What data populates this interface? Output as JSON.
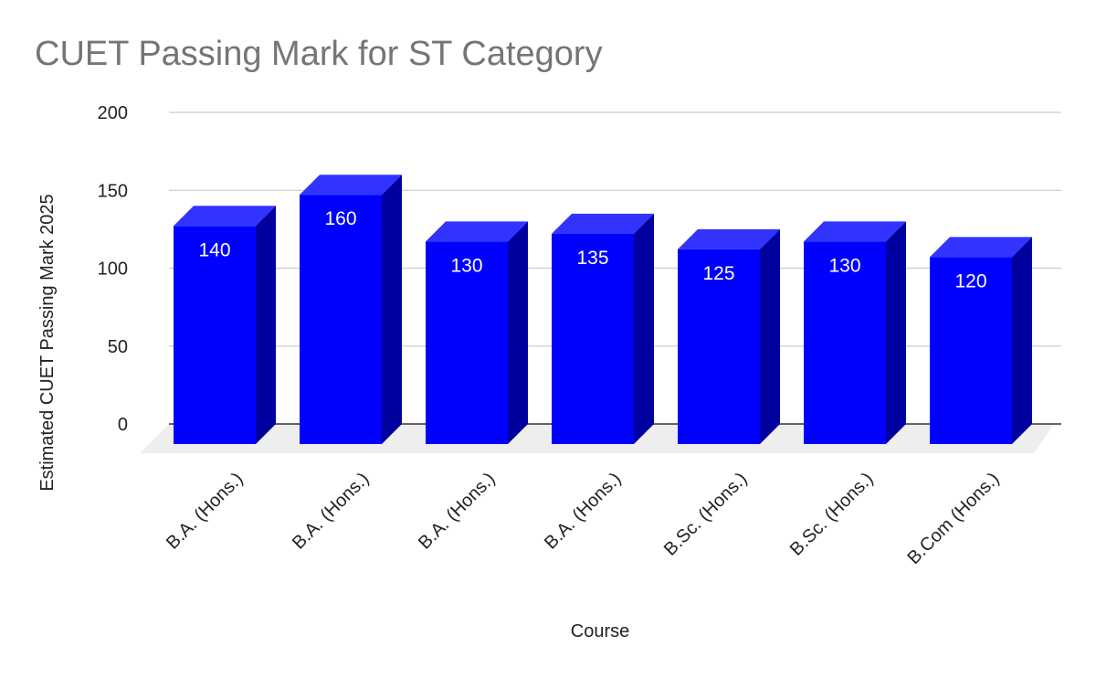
{
  "chart_data": {
    "type": "bar",
    "title": "CUET Passing Mark for ST Category",
    "xlabel": "Course",
    "ylabel": "Estimated CUET Passing Mark 2025",
    "categories": [
      "B.A. (Hons.)",
      "B.A. (Hons.)",
      "B.A. (Hons.)",
      "B.A. (Hons.)",
      "B.Sc. (Hons.)",
      "B.Sc. (Hons.)",
      "B.Com (Hons.)"
    ],
    "values": [
      140,
      160,
      130,
      135,
      125,
      130,
      120
    ],
    "data_labels": [
      "140",
      "160",
      "130",
      "135",
      "125",
      "130",
      "120"
    ],
    "ylim": [
      0,
      200
    ],
    "yticks": [
      "0",
      "50",
      "100",
      "150",
      "200"
    ],
    "grid": true,
    "style": "3d",
    "legend": "none",
    "colors": {
      "bar_front": "#0000FF",
      "bar_top": "#3333FF",
      "bar_side": "#00009E",
      "floor": "#EEEEEE",
      "grid": "#CCCCCC",
      "baseline": "#333333",
      "title": "#757575"
    }
  }
}
